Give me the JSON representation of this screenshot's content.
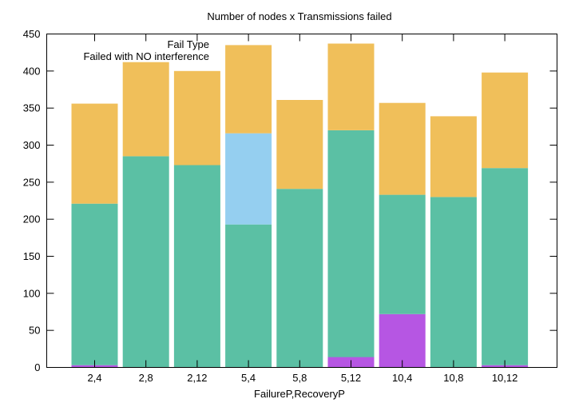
{
  "chart_data": {
    "type": "bar",
    "stacked": true,
    "title": "Number of nodes x Transmissions failed",
    "xlabel": "FailureP,RecoveryP",
    "ylabel": "",
    "ylim": [
      0,
      450
    ],
    "yticks": [
      0,
      50,
      100,
      150,
      200,
      250,
      300,
      350,
      400,
      450
    ],
    "grid": false,
    "legend_position": "top-left",
    "legend_title": "Fail Type",
    "categories": [
      "2,4",
      "2,8",
      "2,12",
      "5,4",
      "5,8",
      "5,12",
      "10,4",
      "10,8",
      "10,12"
    ],
    "series": [
      {
        "name": "",
        "color": "#b656e3",
        "values": [
          3,
          0,
          0,
          0,
          0,
          14,
          72,
          0,
          3
        ]
      },
      {
        "name": "",
        "color": "#5bc0a4",
        "values": [
          218,
          285,
          273,
          193,
          241,
          306,
          161,
          230,
          266
        ]
      },
      {
        "name": "",
        "color": "#95cff0",
        "values": [
          0,
          0,
          0,
          123,
          0,
          0,
          0,
          0,
          0
        ]
      },
      {
        "name": "Failed with NO interference",
        "color": "#f0bf5a",
        "values": [
          135,
          127,
          127,
          119,
          120,
          117,
          124,
          109,
          129
        ]
      }
    ]
  }
}
